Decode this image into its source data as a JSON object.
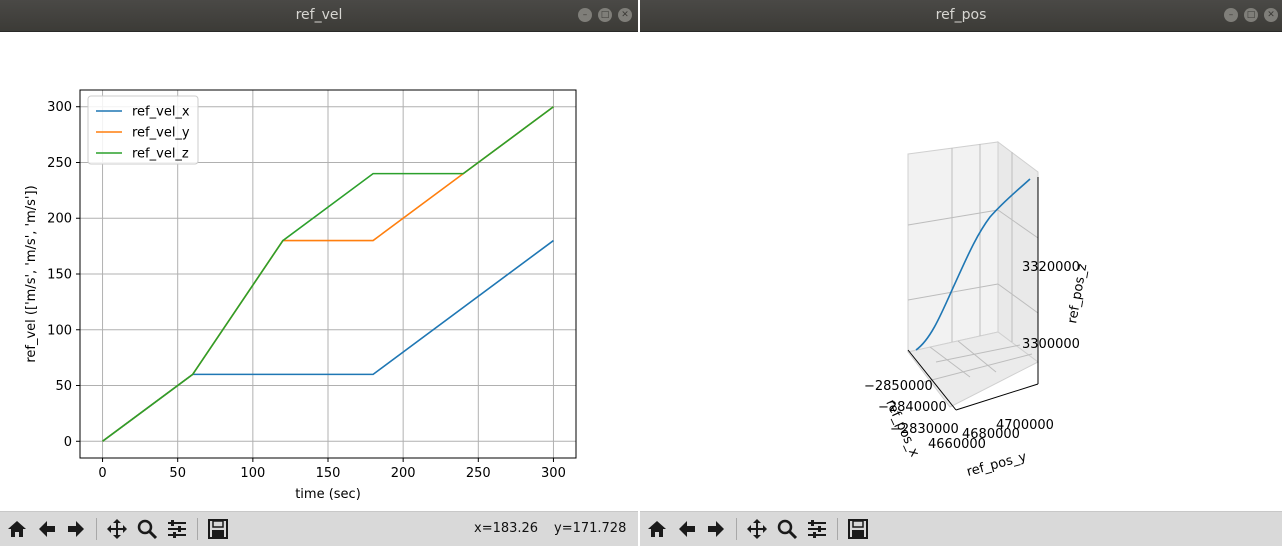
{
  "windows": {
    "left": {
      "title": "ref_vel",
      "coords": {
        "x": "x=183.26",
        "y": "y=171.728"
      }
    },
    "right": {
      "title": "ref_pos"
    }
  },
  "toolbar": {
    "icons": [
      "home-icon",
      "back-arrow-icon",
      "forward-arrow-icon",
      "pan-icon",
      "zoom-icon",
      "subplots-icon",
      "save-icon"
    ]
  },
  "colors": {
    "titlebar": "#3c3b37",
    "series_x": "#1f77b4",
    "series_y": "#ff7f0e",
    "series_z": "#2ca02c"
  },
  "chart_data": [
    {
      "type": "line",
      "title": "",
      "xlabel": "time (sec)",
      "ylabel": "ref_vel (['m/s', 'm/s', 'm/s'])",
      "xlim": [
        -15,
        315
      ],
      "ylim": [
        -15,
        315
      ],
      "xticks": [
        0,
        50,
        100,
        150,
        200,
        250,
        300
      ],
      "yticks": [
        0,
        50,
        100,
        150,
        200,
        250,
        300
      ],
      "grid": true,
      "legend": "top-left",
      "series": [
        {
          "name": "ref_vel_x",
          "color": "#1f77b4",
          "x": [
            0,
            60,
            180,
            300
          ],
          "y": [
            0,
            60,
            60,
            180
          ]
        },
        {
          "name": "ref_vel_y",
          "color": "#ff7f0e",
          "x": [
            0,
            60,
            120,
            180,
            240,
            300
          ],
          "y": [
            0,
            60,
            180,
            180,
            240,
            300
          ]
        },
        {
          "name": "ref_vel_z",
          "color": "#2ca02c",
          "x": [
            0,
            60,
            120,
            180,
            240,
            300
          ],
          "y": [
            0,
            60,
            180,
            240,
            240,
            300
          ]
        }
      ]
    },
    {
      "type": "line3d",
      "title": "",
      "xlabel": "ref_pos_x",
      "ylabel": "ref_pos_y",
      "zlabel": "ref_pos_z",
      "x_ticks": [
        "−2850000",
        "−2840000",
        "−2830000"
      ],
      "y_ticks": [
        "4660000",
        "4680000",
        "4700000"
      ],
      "z_ticks": [
        "3300000",
        "3320000"
      ],
      "grid": true,
      "series": [
        {
          "name": "",
          "color": "#1f77b4"
        }
      ]
    }
  ]
}
